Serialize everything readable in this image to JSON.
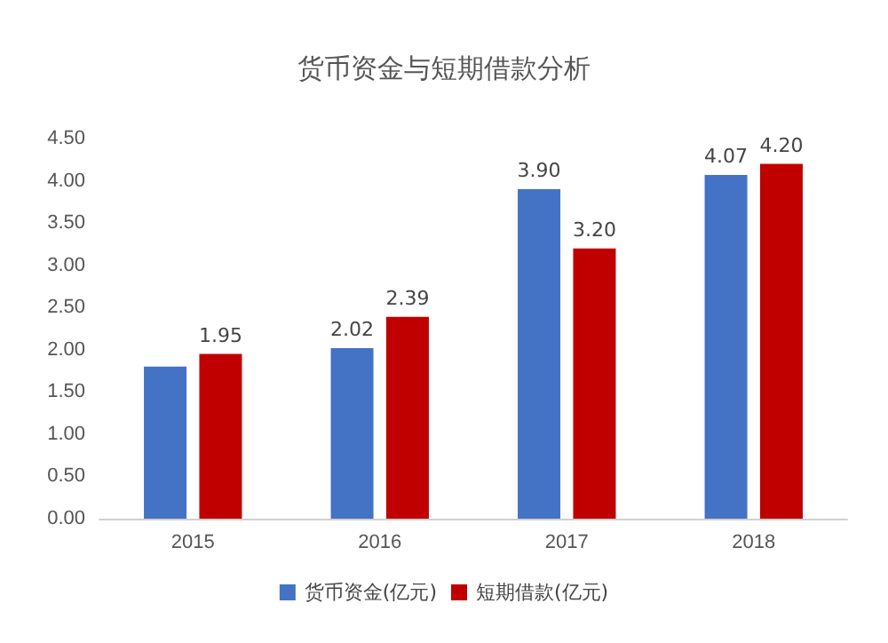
{
  "chart_data": {
    "type": "bar",
    "title": "货币资金与短期借款分析",
    "categories": [
      "2015",
      "2016",
      "2017",
      "2018"
    ],
    "series": [
      {
        "name": "货币资金(亿元)",
        "color": "#4472c4",
        "values": [
          1.8,
          2.02,
          3.9,
          4.07
        ],
        "value_labels": [
          null,
          "2.02",
          "3.90",
          "4.07"
        ]
      },
      {
        "name": "短期借款(亿元)",
        "color": "#c00000",
        "values": [
          1.95,
          2.39,
          3.2,
          4.2
        ],
        "value_labels": [
          "1.95",
          "2.39",
          "3.20",
          "4.20"
        ]
      }
    ],
    "ylim": [
      0,
      4.5
    ],
    "yticks": [
      {
        "value": 0,
        "label": "0.00"
      },
      {
        "value": 0.5,
        "label": "0.50"
      },
      {
        "value": 1,
        "label": "1.00"
      },
      {
        "value": 1.5,
        "label": "1.50"
      },
      {
        "value": 2,
        "label": "2.00"
      },
      {
        "value": 2.5,
        "label": "2.50"
      },
      {
        "value": 3,
        "label": "3.00"
      },
      {
        "value": 3.5,
        "label": "3.50"
      },
      {
        "value": 4,
        "label": "4.00"
      },
      {
        "value": 4.5,
        "label": "4.50"
      }
    ],
    "grid": false,
    "legend": "bottom"
  }
}
